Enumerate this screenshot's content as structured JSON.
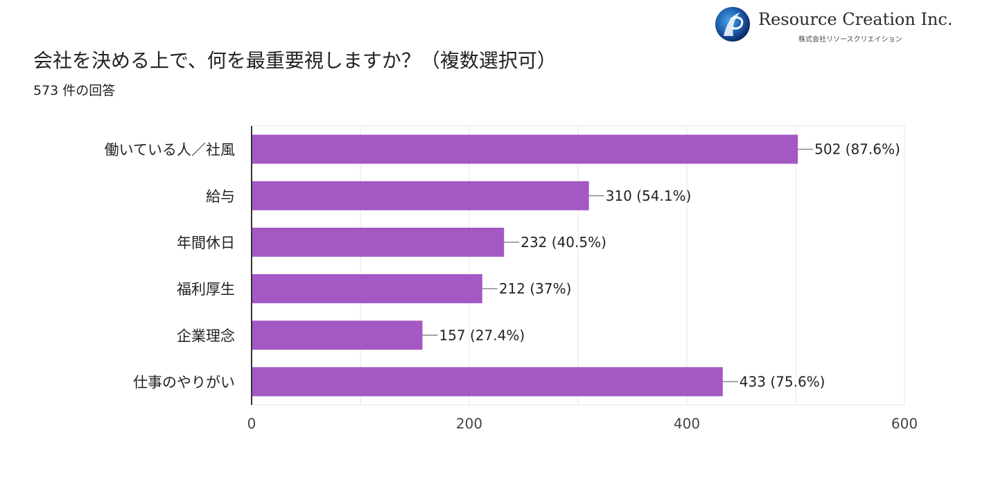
{
  "logo": {
    "name": "Resource Creation Inc.",
    "subtitle": "株式会社リソースクリエイション"
  },
  "colors": {
    "bar": "#a358c4",
    "grid": "#e6e6e6",
    "axis": "#333333",
    "leader": "#888888"
  },
  "chart_data": {
    "type": "bar",
    "orientation": "horizontal",
    "title": "会社を決める上で、何を最重要視しますか？（複数選択可）",
    "subtitle": "573 件の回答",
    "categories": [
      "働いている人／社風",
      "給与",
      "年間休日",
      "福利厚生",
      "企業理念",
      "仕事のやりがい"
    ],
    "values": [
      502,
      310,
      232,
      212,
      157,
      433
    ],
    "value_labels": [
      "502 (87.6%)",
      "310 (54.1%)",
      "232 (40.5%)",
      "212 (37%)",
      "157 (27.4%)",
      "433 (75.6%)"
    ],
    "xlim": [
      0,
      600
    ],
    "xticks": [
      0,
      200,
      400,
      600
    ],
    "xtick_labels": [
      "0",
      "200",
      "400",
      "600"
    ],
    "grid": true,
    "xlabel": "",
    "ylabel": ""
  }
}
